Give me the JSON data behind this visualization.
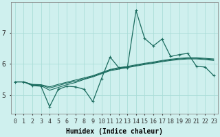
{
  "xlabel": "Humidex (Indice chaleur)",
  "background_color": "#cff0ee",
  "grid_color": "#aaddd8",
  "line_color": "#1a6b5e",
  "x_ticks": [
    0,
    1,
    2,
    3,
    4,
    5,
    6,
    7,
    8,
    9,
    10,
    11,
    12,
    13,
    14,
    15,
    16,
    17,
    18,
    19,
    20,
    21,
    22,
    23
  ],
  "y_ticks": [
    5,
    6,
    7
  ],
  "ylim": [
    4.4,
    8.0
  ],
  "xlim": [
    -0.5,
    23.5
  ],
  "line1_y": [
    5.42,
    5.42,
    5.32,
    5.3,
    5.15,
    5.24,
    5.33,
    5.4,
    5.5,
    5.58,
    5.68,
    5.78,
    5.83,
    5.88,
    5.93,
    5.98,
    6.02,
    6.07,
    6.11,
    6.14,
    6.16,
    6.16,
    6.14,
    6.11
  ],
  "line2_y": [
    5.42,
    5.42,
    5.33,
    5.32,
    5.22,
    5.3,
    5.38,
    5.44,
    5.52,
    5.6,
    5.7,
    5.8,
    5.86,
    5.9,
    5.95,
    6.0,
    6.04,
    6.09,
    6.13,
    6.16,
    6.18,
    6.18,
    6.16,
    6.14
  ],
  "line3_y": [
    5.42,
    5.42,
    5.34,
    5.33,
    5.26,
    5.34,
    5.41,
    5.48,
    5.55,
    5.62,
    5.72,
    5.82,
    5.88,
    5.92,
    5.97,
    6.02,
    6.06,
    6.11,
    6.15,
    6.18,
    6.2,
    6.2,
    6.18,
    6.16
  ],
  "line4_y": [
    5.42,
    5.42,
    5.3,
    5.28,
    4.62,
    5.18,
    5.28,
    5.26,
    5.18,
    4.78,
    5.52,
    6.22,
    5.88,
    5.88,
    7.72,
    6.82,
    6.58,
    6.8,
    6.24,
    6.3,
    6.34,
    5.92,
    5.9,
    5.62
  ],
  "smooth_lw": 0.8,
  "jagged_lw": 0.9,
  "marker_size": 2.5,
  "xlabel_fontsize": 7,
  "tick_fontsize": 6
}
